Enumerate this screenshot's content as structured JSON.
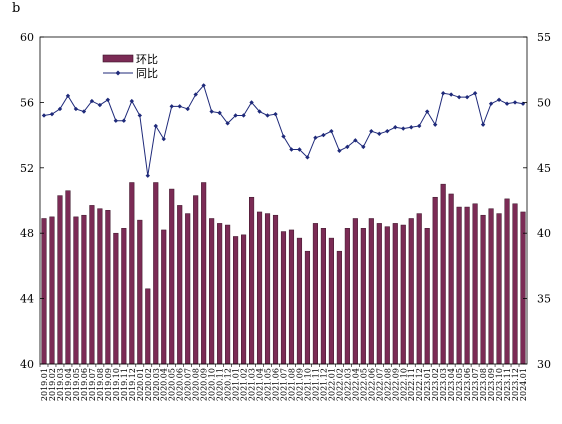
{
  "panel_label": "b",
  "chart_data": {
    "type": "bar+line",
    "categories": [
      "2019.01",
      "2019.02",
      "2019.03",
      "2019.04",
      "2019.05",
      "2019.06",
      "2019.07",
      "2019.08",
      "2019.09",
      "2019.10",
      "2019.11",
      "2019.12",
      "2020.01",
      "2020.02",
      "2020.03",
      "2020.04",
      "2020.05",
      "2020.06",
      "2020.07",
      "2020.08",
      "2020.09",
      "2020.10",
      "2020.11",
      "2020.12",
      "2021.01",
      "2021.02",
      "2021.03",
      "2021.04",
      "2021.05",
      "2021.06",
      "2021.07",
      "2021.08",
      "2021.09",
      "2021.10",
      "2021.11",
      "2021.12",
      "2022.01",
      "2022.02",
      "2022.03",
      "2022.04",
      "2022.05",
      "2022.06",
      "2022.07",
      "2022.08",
      "2022.09",
      "2022.10",
      "2022.11",
      "2022.12",
      "2023.01",
      "2023.02",
      "2023.03",
      "2023.04",
      "2023.05",
      "2023.06",
      "2023.07",
      "2023.08",
      "2023.09",
      "2023.10",
      "2023.11",
      "2023.12",
      "2024.01"
    ],
    "series": [
      {
        "name": "环比",
        "type": "bar",
        "axis": "left",
        "color": "#7b2b55",
        "values": [
          48.9,
          49.0,
          50.3,
          50.6,
          49.0,
          49.1,
          49.7,
          49.5,
          49.4,
          48.0,
          48.3,
          51.1,
          48.8,
          44.6,
          51.1,
          48.2,
          50.7,
          49.7,
          49.2,
          50.3,
          51.1,
          48.9,
          48.6,
          48.5,
          47.8,
          47.9,
          50.2,
          49.3,
          49.2,
          49.1,
          48.1,
          48.2,
          47.7,
          46.9,
          48.6,
          48.3,
          47.7,
          46.9,
          48.3,
          48.9,
          48.3,
          48.9,
          48.6,
          48.4,
          48.6,
          48.5,
          48.9,
          49.2,
          48.3,
          50.2,
          51.0,
          50.4,
          49.6,
          49.6,
          49.8,
          49.1,
          49.5,
          49.2,
          50.1,
          49.8,
          49.3
        ]
      },
      {
        "name": "同比",
        "type": "line",
        "axis": "right",
        "color": "#1f2a7a",
        "values": [
          49.0,
          49.1,
          49.5,
          50.5,
          49.5,
          49.3,
          50.1,
          49.8,
          50.2,
          48.6,
          48.6,
          50.1,
          49.0,
          44.4,
          48.2,
          47.2,
          49.7,
          49.7,
          49.5,
          50.6,
          51.3,
          49.3,
          49.2,
          48.4,
          49.0,
          49.0,
          50.0,
          49.3,
          49.0,
          49.1,
          47.4,
          46.4,
          46.4,
          45.8,
          47.3,
          47.5,
          47.8,
          46.3,
          46.6,
          47.1,
          46.6,
          47.8,
          47.6,
          47.8,
          48.1,
          48.0,
          48.1,
          48.2,
          49.3,
          48.3,
          50.7,
          50.6,
          50.4,
          50.4,
          50.7,
          48.3,
          49.9,
          50.2,
          49.9,
          50.0,
          49.9
        ]
      }
    ],
    "y_left": {
      "range": [
        40,
        60
      ],
      "ticks": [
        "40",
        "44",
        "48",
        "52",
        "56",
        "60"
      ]
    },
    "y_right": {
      "range": [
        30,
        55
      ],
      "ticks": [
        "30",
        "35",
        "40",
        "45",
        "50",
        "55"
      ]
    },
    "grid": false,
    "legend_position": "top-left"
  }
}
